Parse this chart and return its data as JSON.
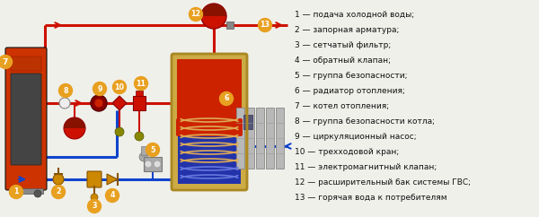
{
  "bg_color": "#f0f0eb",
  "legend_items": [
    "1 — подача холодной воды;",
    "2 — запорная арматура;",
    "3 — сетчатый фильтр;",
    "4 — обратный клапан;",
    "5 — группа безопасности;",
    "6 — радиатор отопления;",
    "7 — котел отопления;",
    "8 — группа безопасности котла;",
    "9 — циркуляционный насос;",
    "10 — трехходовой кран;",
    "11 — электромагнитный клапан;",
    "12 — расширительный бак системы ГВС;",
    "13 — горячая вода к потребителям"
  ],
  "red": "#cc1100",
  "blue": "#1144cc",
  "orange_label": "#e8a020",
  "white": "#ffffff",
  "pipe_lw": 2.2,
  "legend_fontsize": 6.5
}
